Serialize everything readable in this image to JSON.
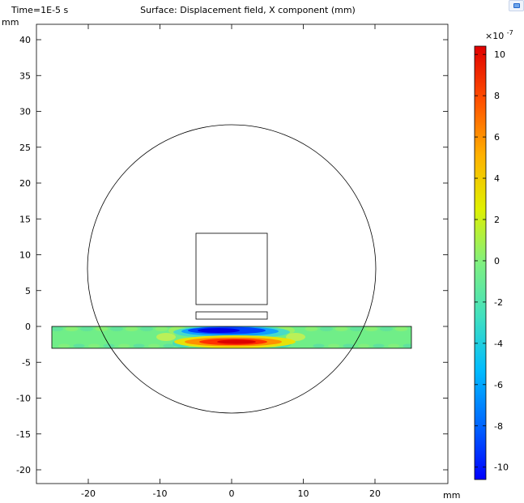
{
  "time_label": "Time=1E-5 s",
  "title": "Surface: Displacement field, X component (mm)",
  "y_unit": "mm",
  "x_unit": "mm",
  "colorbar": {
    "exponent_label": "×10",
    "exponent_power": "-7",
    "ticks": [
      10,
      8,
      6,
      4,
      2,
      0,
      -2,
      -4,
      -6,
      -8,
      -10
    ],
    "min": -10.6,
    "max": 10.4,
    "colors": [
      "#0000ff",
      "#0066ff",
      "#00bbff",
      "#40e0c0",
      "#80f080",
      "#e0f000",
      "#ffb000",
      "#ff5000",
      "#e00000"
    ]
  },
  "chart_data": {
    "type": "heatmap",
    "title": "Surface: Displacement field, X component (mm)",
    "xlabel": "mm",
    "ylabel": "mm",
    "xlim": [
      -27,
      31
    ],
    "ylim": [
      -22,
      43
    ],
    "x_ticks": [
      -20,
      -10,
      0,
      10,
      20
    ],
    "y_ticks": [
      40,
      35,
      30,
      25,
      20,
      15,
      10,
      5,
      0,
      -5,
      -10,
      -15,
      -20
    ],
    "colorbar_range": [
      -1.06e-06,
      1.04e-06
    ],
    "geometry": {
      "circle": {
        "center": [
          0,
          8
        ],
        "radius": 20
      },
      "square": {
        "x": [
          -5,
          5
        ],
        "y": [
          3,
          13
        ]
      },
      "thin_plate": {
        "x": [
          -5,
          5
        ],
        "y": [
          1,
          2
        ]
      },
      "strip": {
        "x": [
          -25,
          25
        ],
        "y": [
          -3,
          0
        ]
      }
    },
    "field_features": [
      {
        "x": 0,
        "y": -0.8,
        "value": -1e-06
      },
      {
        "x": 0,
        "y": -2.2,
        "value": 1e-06
      }
    ]
  },
  "icons": {
    "corner": "window-icon"
  }
}
